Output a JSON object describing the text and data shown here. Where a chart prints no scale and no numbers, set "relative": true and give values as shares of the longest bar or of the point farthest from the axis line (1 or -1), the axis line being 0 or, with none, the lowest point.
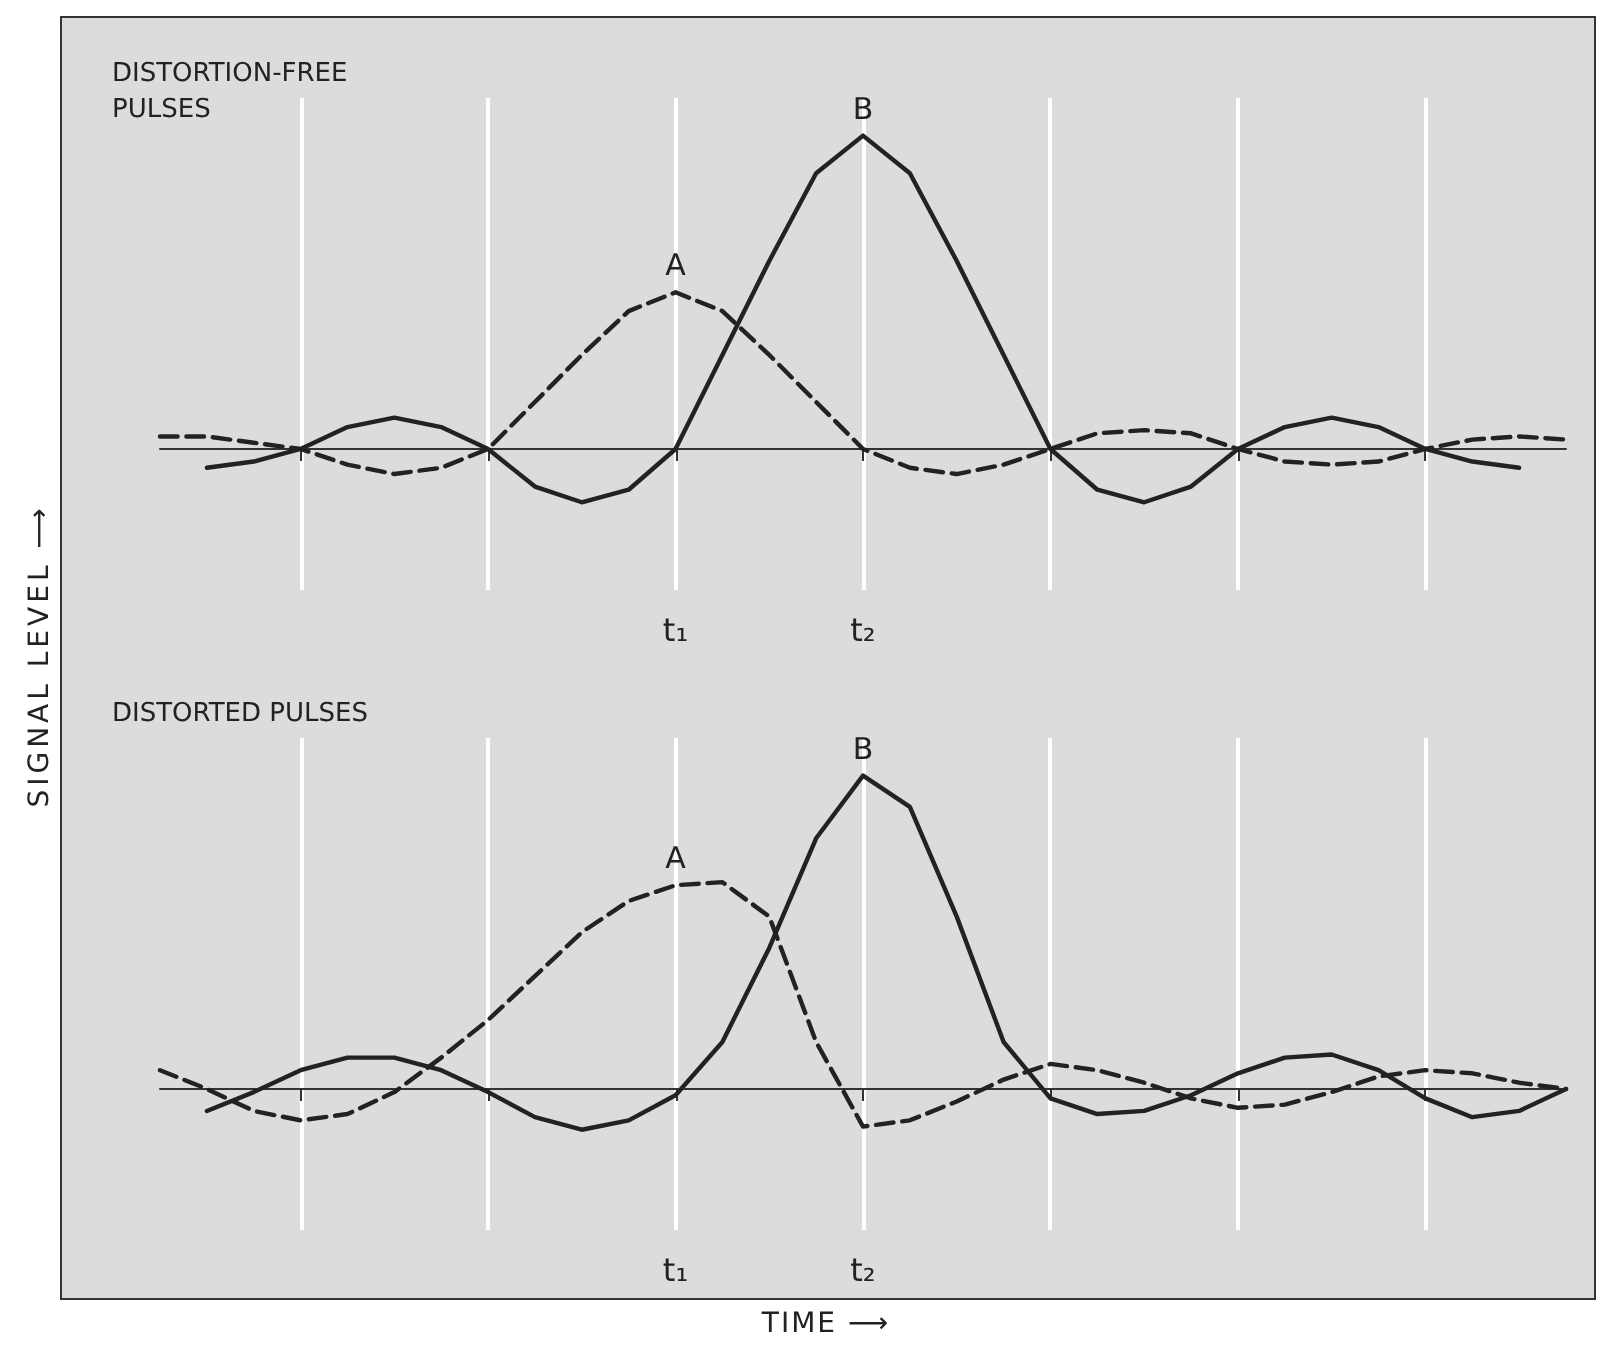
{
  "chart_data": [
    {
      "type": "line",
      "title": "DISTORTION-FREE PULSES",
      "ylabel": "SIGNAL LEVEL ⟶",
      "relative": true,
      "grid": "x",
      "marker": "none",
      "categories": [
        null,
        null,
        null,
        null,
        null,
        null,
        null,
        null,
        null,
        null,
        null,
        "t₁",
        null,
        null,
        null,
        "t₂",
        null,
        null,
        null,
        null,
        null,
        null,
        null,
        null,
        null,
        null,
        null,
        null,
        null,
        null,
        null
      ],
      "series": [
        {
          "color": "#222222",
          "line_style": "dashed",
          "values": [
            0.04,
            0.04,
            0.02,
            0,
            -0.05,
            -0.08,
            -0.06,
            0,
            0.15,
            0.3,
            0.44,
            0.5,
            0.44,
            0.3,
            0.15,
            0,
            -0.06,
            -0.08,
            -0.05,
            0,
            0.05,
            0.06,
            0.05,
            0,
            -0.04,
            -0.05,
            -0.04,
            0,
            0.03,
            0.04,
            0.03
          ]
        },
        {
          "color": "#222222",
          "line_style": "solid",
          "values": [
            null,
            -0.06,
            -0.04,
            0,
            0.07,
            0.1,
            0.07,
            0,
            -0.12,
            -0.17,
            -0.13,
            0,
            0.3,
            0.6,
            0.88,
            1,
            0.88,
            0.6,
            0.3,
            0,
            -0.13,
            -0.17,
            -0.12,
            0,
            0.07,
            0.1,
            0.07,
            0,
            -0.04,
            -0.06,
            null
          ]
        }
      ],
      "annotations": [
        {
          "text": "A",
          "x": "t₁",
          "y": 0.5
        },
        {
          "text": "B",
          "x": "t₂",
          "y": 1
        }
      ]
    },
    {
      "type": "line",
      "title": "DISTORTED PULSES",
      "xlabel": "TIME ⟶",
      "relative": true,
      "grid": "x",
      "marker": "none",
      "categories": [
        null,
        null,
        null,
        null,
        null,
        null,
        null,
        null,
        null,
        null,
        null,
        "t₁",
        null,
        null,
        null,
        "t₂",
        null,
        null,
        null,
        null,
        null,
        null,
        null,
        null,
        null,
        null,
        null,
        null,
        null,
        null,
        null
      ],
      "series": [
        {
          "color": "#222222",
          "line_style": "dashed",
          "values": [
            0.06,
            0,
            -0.07,
            -0.1,
            -0.08,
            -0.01,
            0.1,
            0.22,
            0.36,
            0.5,
            0.6,
            0.65,
            0.66,
            0.55,
            0.15,
            -0.12,
            -0.1,
            -0.04,
            0.03,
            0.08,
            0.06,
            0.02,
            -0.03,
            -0.06,
            -0.05,
            -0.01,
            0.04,
            0.06,
            0.05,
            0.02,
            0
          ]
        },
        {
          "color": "#222222",
          "line_style": "solid",
          "values": [
            null,
            -0.07,
            -0.01,
            0.06,
            0.1,
            0.1,
            0.06,
            -0.01,
            -0.09,
            -0.13,
            -0.1,
            -0.02,
            0.15,
            0.45,
            0.8,
            1,
            0.9,
            0.55,
            0.15,
            -0.03,
            -0.08,
            -0.07,
            -0.02,
            0.05,
            0.1,
            0.11,
            0.06,
            -0.03,
            -0.09,
            -0.07,
            0
          ]
        }
      ],
      "annotations": [
        {
          "text": "A",
          "x": "t₁",
          "y": 0.65
        },
        {
          "text": "B",
          "x": "t₂",
          "y": 1
        }
      ]
    }
  ]
}
